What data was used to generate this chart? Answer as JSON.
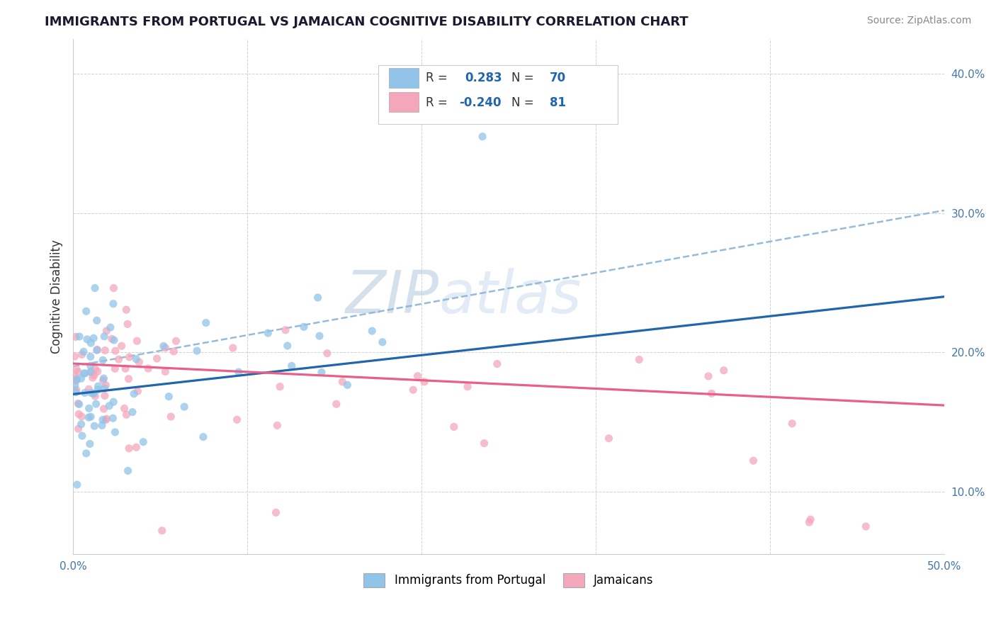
{
  "title": "IMMIGRANTS FROM PORTUGAL VS JAMAICAN COGNITIVE DISABILITY CORRELATION CHART",
  "source": "Source: ZipAtlas.com",
  "ylabel": "Cognitive Disability",
  "xlim": [
    0.0,
    0.5
  ],
  "ylim": [
    0.055,
    0.425
  ],
  "xticks": [
    0.0,
    0.1,
    0.2,
    0.3,
    0.4,
    0.5
  ],
  "xtick_labels": [
    "0.0%",
    "",
    "",
    "",
    "",
    "50.0%"
  ],
  "yticks": [
    0.1,
    0.2,
    0.3,
    0.4
  ],
  "ytick_labels": [
    "10.0%",
    "20.0%",
    "30.0%",
    "40.0%"
  ],
  "blue_R": 0.283,
  "blue_N": 70,
  "pink_R": -0.24,
  "pink_N": 81,
  "blue_color": "#90c4e8",
  "pink_color": "#f4a7bb",
  "blue_line_color": "#2166ac",
  "pink_line_color": "#e8608a",
  "dash_line_color": "#8ab4d8",
  "watermark_color": "#c8d8ee",
  "legend_labels": [
    "Immigrants from Portugal",
    "Jamaicans"
  ],
  "blue_line_x0": 0.0,
  "blue_line_y0": 0.17,
  "blue_line_x1": 0.5,
  "blue_line_y1": 0.24,
  "pink_line_x0": 0.0,
  "pink_line_y0": 0.192,
  "pink_line_x1": 0.5,
  "pink_line_y1": 0.162,
  "dash_line_x0": 0.0,
  "dash_line_y0": 0.19,
  "dash_line_x1": 0.5,
  "dash_line_y1": 0.302
}
